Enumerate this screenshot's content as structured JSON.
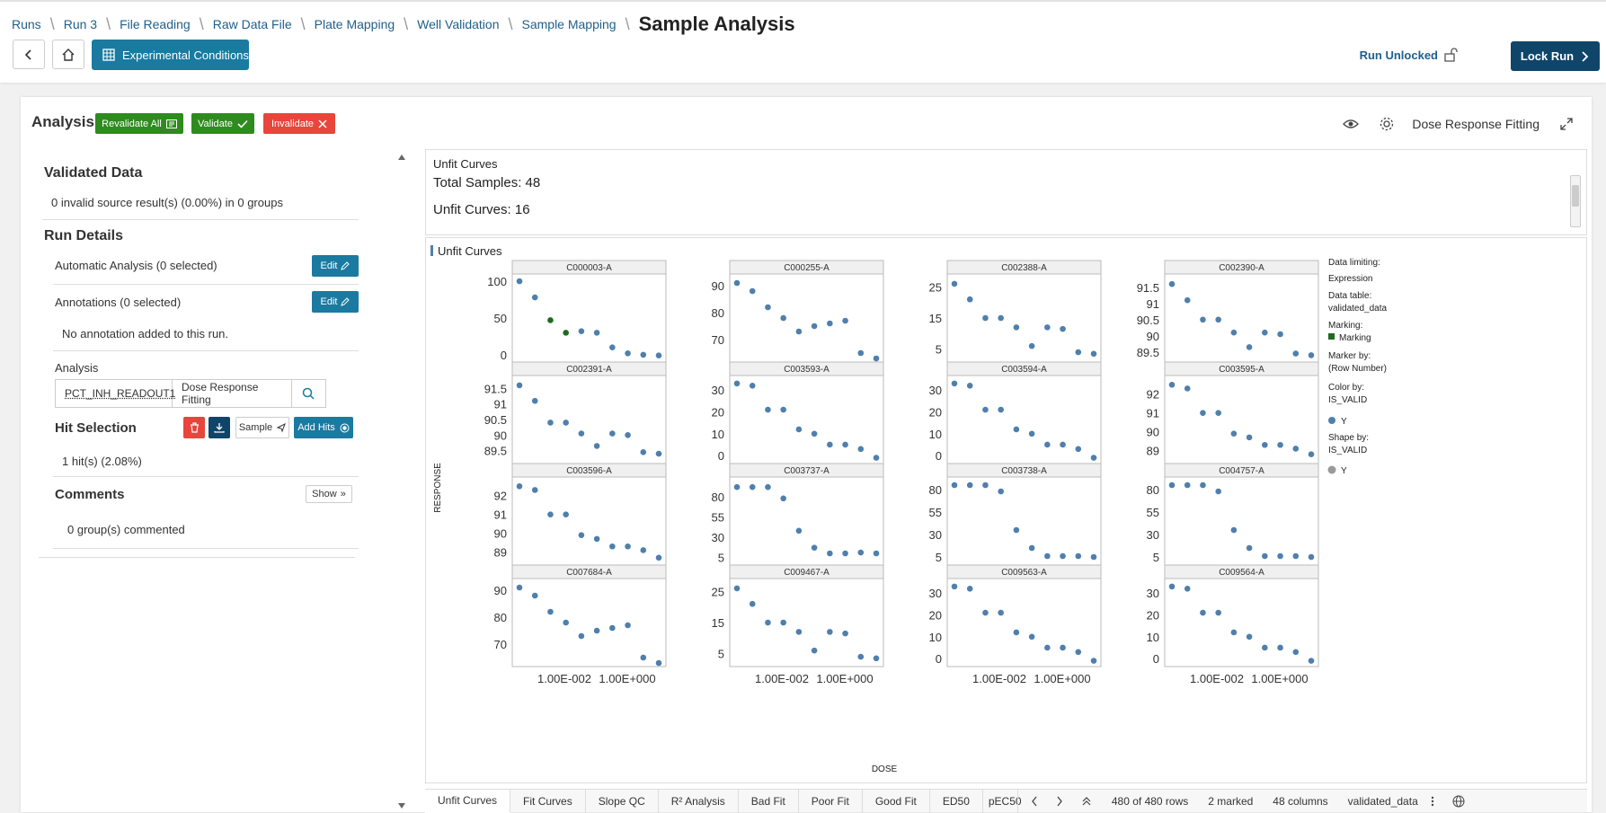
{
  "breadcrumbs": [
    "Runs",
    "Run 3",
    "File Reading",
    "Raw Data File",
    "Plate Mapping",
    "Well Validation",
    "Sample Mapping"
  ],
  "page_title": "Sample Analysis",
  "toolbar": {
    "experimental_conditions": "Experimental Conditions",
    "run_status": "Run Unlocked",
    "lock_run": "Lock Run"
  },
  "analysis": {
    "title": "Analysis",
    "revalidate_all": "Revalidate All",
    "validate": "Validate",
    "invalidate": "Invalidate",
    "view_label": "Dose Response Fitting"
  },
  "left": {
    "validated_data_title": "Validated Data",
    "validated_data_text": "0 invalid source result(s) (0.00%) in 0 groups",
    "run_details_title": "Run Details",
    "automatic_analysis": "Automatic Analysis (0 selected)",
    "annotations": "Annotations (0 selected)",
    "edit": "Edit",
    "no_annotation": "No annotation added to this run.",
    "analysis_label": "Analysis",
    "readout": "PCT_INH_READOUT1",
    "method": "Dose Response Fitting",
    "hit_selection_title": "Hit Selection",
    "sample_btn": "Sample",
    "add_hits": "Add Hits",
    "hits_text": "1 hit(s) (2.08%)",
    "comments_title": "Comments",
    "show_btn": "Show",
    "comments_text": "0 group(s) commented"
  },
  "table_panel": {
    "title": "Unfit Curves",
    "total": "Total Samples: 48",
    "unfit": "Unfit Curves: 16"
  },
  "viz": {
    "title": "Unfit Curves",
    "ylabel": "RESPONSE",
    "xlabel": "DOSE",
    "legend": {
      "l1": "Data limiting:",
      "l2": "Expression",
      "l3": "Data table:",
      "l4": "validated_data",
      "l5": "Marking:",
      "l6": "Marking",
      "l7": "Marker by:",
      "l8": "(Row Number)",
      "l9": "Color by:",
      "l10": "IS_VALID",
      "l11": "Y",
      "l12": "Shape by:",
      "l13": "IS_VALID",
      "l14": "Y"
    },
    "colors": {
      "point": "#4f7fad",
      "marked": "#1f6b1f",
      "shape": "#999999"
    }
  },
  "chart_data": {
    "type": "scatter",
    "xticks": [
      "1.00E-002",
      "1.00E+000"
    ],
    "panels": [
      {
        "name": "C000003-A",
        "yticks": [
          {
            "v": 100,
            "l": "100"
          },
          {
            "v": 50,
            "l": "50"
          },
          {
            "v": 0,
            "l": "0"
          }
        ],
        "ylim": [
          -5,
          105
        ],
        "y": [
          100,
          78,
          47,
          30,
          32,
          30,
          10,
          2,
          0,
          -1
        ],
        "marked": [
          2,
          3
        ]
      },
      {
        "name": "C000255-A",
        "yticks": [
          {
            "v": 90,
            "l": "90"
          },
          {
            "v": 80,
            "l": "80"
          },
          {
            "v": 70,
            "l": "70"
          }
        ],
        "ylim": [
          63,
          93
        ],
        "y": [
          91,
          88,
          82,
          78,
          73,
          75,
          76,
          77,
          65,
          63
        ]
      },
      {
        "name": "C002388-A",
        "yticks": [
          {
            "v": 25,
            "l": "25"
          },
          {
            "v": 15,
            "l": "15"
          },
          {
            "v": 5,
            "l": "5"
          }
        ],
        "ylim": [
          2,
          28
        ],
        "y": [
          26,
          21,
          15,
          15,
          12,
          6,
          12,
          11.5,
          4,
          3.5
        ]
      },
      {
        "name": "C002390-A",
        "yticks": [
          {
            "v": 91.5,
            "l": "91.5"
          },
          {
            "v": 91,
            "l": "91"
          },
          {
            "v": 90.5,
            "l": "90.5"
          },
          {
            "v": 90,
            "l": "90"
          },
          {
            "v": 89.5,
            "l": "89.5"
          }
        ],
        "ylim": [
          89.3,
          91.8
        ],
        "y": [
          91.6,
          91.1,
          90.5,
          90.5,
          90.1,
          89.65,
          90.1,
          90.05,
          89.45,
          89.4
        ]
      },
      {
        "name": "C002391-A",
        "yticks": [
          {
            "v": 91.5,
            "l": "91.5"
          },
          {
            "v": 91,
            "l": "91"
          },
          {
            "v": 90.5,
            "l": "90.5"
          },
          {
            "v": 90,
            "l": "90"
          },
          {
            "v": 89.5,
            "l": "89.5"
          }
        ],
        "ylim": [
          89.2,
          91.8
        ],
        "y": [
          91.6,
          91.1,
          90.4,
          90.4,
          90.05,
          89.65,
          90.05,
          90,
          89.45,
          89.4
        ]
      },
      {
        "name": "C003593-A",
        "yticks": [
          {
            "v": 30,
            "l": "30"
          },
          {
            "v": 20,
            "l": "20"
          },
          {
            "v": 10,
            "l": "10"
          },
          {
            "v": 0,
            "l": "0"
          }
        ],
        "ylim": [
          -2,
          35
        ],
        "y": [
          33,
          32,
          21,
          21,
          12,
          10,
          5,
          5,
          3,
          -1
        ]
      },
      {
        "name": "C003594-A",
        "yticks": [
          {
            "v": 30,
            "l": "30"
          },
          {
            "v": 20,
            "l": "20"
          },
          {
            "v": 10,
            "l": "10"
          },
          {
            "v": 0,
            "l": "0"
          }
        ],
        "ylim": [
          -2,
          35
        ],
        "y": [
          33,
          32,
          21,
          21,
          12,
          10,
          5,
          5,
          3,
          -1
        ]
      },
      {
        "name": "C003595-A",
        "yticks": [
          {
            "v": 92,
            "l": "92"
          },
          {
            "v": 91,
            "l": "91"
          },
          {
            "v": 90,
            "l": "90"
          },
          {
            "v": 89,
            "l": "89"
          }
        ],
        "ylim": [
          88.5,
          92.8
        ],
        "y": [
          92.5,
          92.3,
          91,
          91,
          89.9,
          89.7,
          89.3,
          89.3,
          89.1,
          88.8
        ]
      },
      {
        "name": "C003596-A",
        "yticks": [
          {
            "v": 92,
            "l": "92"
          },
          {
            "v": 91,
            "l": "91"
          },
          {
            "v": 90,
            "l": "90"
          },
          {
            "v": 89,
            "l": "89"
          }
        ],
        "ylim": [
          88.5,
          92.8
        ],
        "y": [
          92.5,
          92.3,
          91,
          91,
          89.9,
          89.7,
          89.3,
          89.3,
          89.1,
          88.7
        ]
      },
      {
        "name": "C003737-A",
        "yticks": [
          {
            "v": 80,
            "l": "80"
          },
          {
            "v": 55,
            "l": "55"
          },
          {
            "v": 30,
            "l": "30"
          },
          {
            "v": 5,
            "l": "5"
          }
        ],
        "ylim": [
          0,
          100
        ],
        "y": [
          92,
          92,
          92,
          78,
          38,
          17,
          10,
          10,
          11,
          10
        ]
      },
      {
        "name": "C003738-A",
        "yticks": [
          {
            "v": 80,
            "l": "80"
          },
          {
            "v": 55,
            "l": "55"
          },
          {
            "v": 30,
            "l": "30"
          },
          {
            "v": 5,
            "l": "5"
          }
        ],
        "ylim": [
          0,
          90
        ],
        "y": [
          85,
          85,
          85,
          78,
          35,
          15,
          6,
          6,
          6,
          5
        ]
      },
      {
        "name": "C004757-A",
        "yticks": [
          {
            "v": 80,
            "l": "80"
          },
          {
            "v": 55,
            "l": "55"
          },
          {
            "v": 30,
            "l": "30"
          },
          {
            "v": 5,
            "l": "5"
          }
        ],
        "ylim": [
          0,
          90
        ],
        "y": [
          85,
          85,
          85,
          78,
          35,
          15,
          6,
          6,
          6,
          5
        ]
      },
      {
        "name": "C007684-A",
        "yticks": [
          {
            "v": 90,
            "l": "90"
          },
          {
            "v": 80,
            "l": "80"
          },
          {
            "v": 70,
            "l": "70"
          }
        ],
        "ylim": [
          63,
          93
        ],
        "y": [
          91,
          88,
          82,
          78,
          73,
          75,
          76,
          77,
          65,
          63
        ]
      },
      {
        "name": "C009467-A",
        "yticks": [
          {
            "v": 25,
            "l": "25"
          },
          {
            "v": 15,
            "l": "15"
          },
          {
            "v": 5,
            "l": "5"
          }
        ],
        "ylim": [
          2,
          28
        ],
        "y": [
          26,
          21,
          15,
          15,
          12,
          6,
          12,
          11.5,
          4,
          3.5
        ]
      },
      {
        "name": "C009563-A",
        "yticks": [
          {
            "v": 30,
            "l": "30"
          },
          {
            "v": 20,
            "l": "20"
          },
          {
            "v": 10,
            "l": "10"
          },
          {
            "v": 0,
            "l": "0"
          }
        ],
        "ylim": [
          -2,
          35
        ],
        "y": [
          33,
          32,
          21,
          21,
          12,
          10,
          5,
          5,
          3,
          -1
        ]
      },
      {
        "name": "C009564-A",
        "yticks": [
          {
            "v": 30,
            "l": "30"
          },
          {
            "v": 20,
            "l": "20"
          },
          {
            "v": 10,
            "l": "10"
          },
          {
            "v": 0,
            "l": "0"
          }
        ],
        "ylim": [
          -2,
          35
        ],
        "y": [
          33,
          32,
          21,
          21,
          12,
          10,
          5,
          5,
          3,
          -1
        ]
      }
    ]
  },
  "bottom": {
    "tabs": [
      "Unfit Curves",
      "Fit Curves",
      "Slope QC",
      "R² Analysis",
      "Bad Fit",
      "Poor Fit",
      "Good Fit",
      "ED50",
      "pEC50"
    ],
    "rows": "480 of 480 rows",
    "marked": "2 marked",
    "columns": "48 columns",
    "table": "validated_data"
  }
}
